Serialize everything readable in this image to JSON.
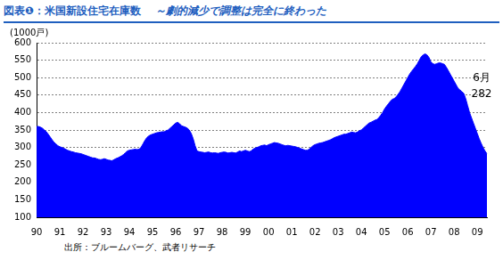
{
  "chart_data": {
    "type": "area",
    "title": "図表❶：米国新設住宅在庫数",
    "subtitle": "～劇的減少で調整は完全に終わった",
    "y_label": "(1000戸)",
    "source": "出所：ブルームバーグ、武者リサーチ",
    "annotation": {
      "text": "6月",
      "value": 282
    },
    "color": "#0000ff",
    "grid": true,
    "ylim": [
      100,
      600
    ],
    "yticks": [
      100,
      150,
      200,
      250,
      300,
      350,
      400,
      450,
      500,
      550,
      600
    ],
    "categories": [
      "90",
      null,
      null,
      null,
      null,
      null,
      null,
      null,
      null,
      null,
      null,
      null,
      "91",
      null,
      null,
      null,
      null,
      null,
      null,
      null,
      null,
      null,
      null,
      null,
      "92",
      null,
      null,
      null,
      null,
      null,
      null,
      null,
      null,
      null,
      null,
      null,
      "93",
      null,
      null,
      null,
      null,
      null,
      null,
      null,
      null,
      null,
      null,
      null,
      "94",
      null,
      null,
      null,
      null,
      null,
      null,
      null,
      null,
      null,
      null,
      null,
      "95",
      null,
      null,
      null,
      null,
      null,
      null,
      null,
      null,
      null,
      null,
      null,
      "96",
      null,
      null,
      null,
      null,
      null,
      null,
      null,
      null,
      null,
      null,
      null,
      "97",
      null,
      null,
      null,
      null,
      null,
      null,
      null,
      null,
      null,
      null,
      null,
      "98",
      null,
      null,
      null,
      null,
      null,
      null,
      null,
      null,
      null,
      null,
      null,
      "99",
      null,
      null,
      null,
      null,
      null,
      null,
      null,
      null,
      null,
      null,
      null,
      "00",
      null,
      null,
      null,
      null,
      null,
      null,
      null,
      null,
      null,
      null,
      null,
      "01",
      null,
      null,
      null,
      null,
      null,
      null,
      null,
      null,
      null,
      null,
      null,
      "02",
      null,
      null,
      null,
      null,
      null,
      null,
      null,
      null,
      null,
      null,
      null,
      "03",
      null,
      null,
      null,
      null,
      null,
      null,
      null,
      null,
      null,
      null,
      null,
      "04",
      null,
      null,
      null,
      null,
      null,
      null,
      null,
      null,
      null,
      null,
      null,
      "05",
      null,
      null,
      null,
      null,
      null,
      null,
      null,
      null,
      null,
      null,
      null,
      "06",
      null,
      null,
      null,
      null,
      null,
      null,
      null,
      null,
      null,
      null,
      null,
      "07",
      null,
      null,
      null,
      null,
      null,
      null,
      null,
      null,
      null,
      null,
      null,
      "08",
      null,
      null,
      null,
      null,
      null,
      null,
      null,
      null,
      null,
      null,
      null,
      "09",
      null,
      null,
      null,
      null,
      null
    ],
    "values": [
      360,
      360,
      358,
      355,
      350,
      345,
      338,
      330,
      322,
      315,
      310,
      305,
      302,
      300,
      298,
      295,
      292,
      290,
      288,
      287,
      285,
      284,
      283,
      282,
      280,
      278,
      276,
      274,
      272,
      270,
      270,
      268,
      266,
      265,
      266,
      268,
      266,
      264,
      263,
      262,
      265,
      268,
      270,
      273,
      276,
      280,
      285,
      290,
      292,
      293,
      294,
      295,
      294,
      295,
      300,
      310,
      320,
      328,
      333,
      336,
      338,
      340,
      342,
      343,
      344,
      345,
      345,
      348,
      350,
      355,
      360,
      365,
      370,
      372,
      368,
      362,
      360,
      358,
      355,
      350,
      340,
      325,
      305,
      290,
      288,
      287,
      286,
      285,
      286,
      287,
      285,
      284,
      285,
      284,
      283,
      285,
      286,
      287,
      286,
      284,
      285,
      286,
      285,
      284,
      287,
      290,
      288,
      290,
      292,
      290,
      288,
      290,
      295,
      298,
      300,
      302,
      305,
      306,
      307,
      305,
      308,
      310,
      312,
      314,
      313,
      312,
      310,
      308,
      306,
      305,
      306,
      305,
      304,
      303,
      302,
      300,
      298,
      296,
      294,
      292,
      292,
      295,
      300,
      305,
      308,
      310,
      312,
      313,
      314,
      316,
      318,
      320,
      322,
      325,
      328,
      330,
      332,
      334,
      336,
      338,
      338,
      340,
      342,
      344,
      343,
      342,
      344,
      348,
      350,
      355,
      360,
      365,
      370,
      372,
      375,
      378,
      380,
      385,
      392,
      400,
      410,
      418,
      425,
      432,
      438,
      440,
      445,
      452,
      460,
      470,
      480,
      490,
      500,
      510,
      518,
      525,
      532,
      540,
      550,
      560,
      565,
      568,
      565,
      558,
      545,
      540,
      538,
      540,
      542,
      542,
      540,
      538,
      530,
      520,
      510,
      500,
      490,
      480,
      470,
      465,
      460,
      455,
      440,
      420,
      400,
      385,
      370,
      355,
      340,
      325,
      312,
      300,
      290,
      282
    ]
  }
}
